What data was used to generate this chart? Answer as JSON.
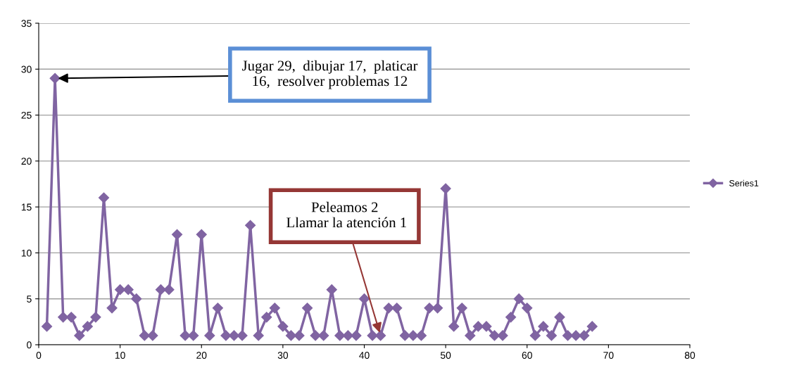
{
  "chart_data": {
    "type": "line",
    "x": [
      1,
      2,
      3,
      4,
      5,
      6,
      7,
      8,
      9,
      10,
      11,
      12,
      13,
      14,
      15,
      16,
      17,
      18,
      19,
      20,
      21,
      22,
      23,
      24,
      25,
      26,
      27,
      28,
      29,
      30,
      31,
      32,
      33,
      34,
      35,
      36,
      37,
      38,
      39,
      40,
      41,
      42,
      43,
      44,
      45,
      46,
      47,
      48,
      49,
      50,
      51,
      52,
      53,
      54,
      55,
      56,
      57,
      58,
      59,
      60,
      61,
      62,
      63,
      64,
      65,
      66,
      67,
      68
    ],
    "series": [
      {
        "name": "Series1",
        "color": "#8064a2",
        "values": [
          2,
          29,
          3,
          3,
          1,
          2,
          3,
          16,
          4,
          6,
          6,
          5,
          1,
          1,
          6,
          6,
          12,
          1,
          1,
          12,
          1,
          4,
          1,
          1,
          1,
          13,
          1,
          3,
          4,
          2,
          1,
          1,
          4,
          1,
          1,
          6,
          1,
          1,
          1,
          5,
          1,
          1,
          4,
          4,
          1,
          1,
          1,
          4,
          4,
          17,
          2,
          4,
          1,
          2,
          2,
          1,
          1,
          3,
          5,
          4,
          1,
          2,
          1,
          3,
          1,
          1,
          1,
          2
        ]
      }
    ],
    "xlim": [
      0,
      80
    ],
    "xticks": [
      0,
      10,
      20,
      30,
      40,
      50,
      60,
      70,
      80
    ],
    "ylim": [
      0,
      35
    ],
    "yticks": [
      0,
      5,
      10,
      15,
      20,
      25,
      30,
      35
    ],
    "grid": "y",
    "legend": "right",
    "marker": "diamond",
    "line_style": "solid",
    "annotations": [
      {
        "text": "Jugar 29,  dibujar 17,  platicar\n16,  resolver problemas 12",
        "x": 2,
        "y": 29
      },
      {
        "text": "Peleamos 2\n Llamar la atención 1",
        "x": 42,
        "y": 1
      }
    ]
  }
}
